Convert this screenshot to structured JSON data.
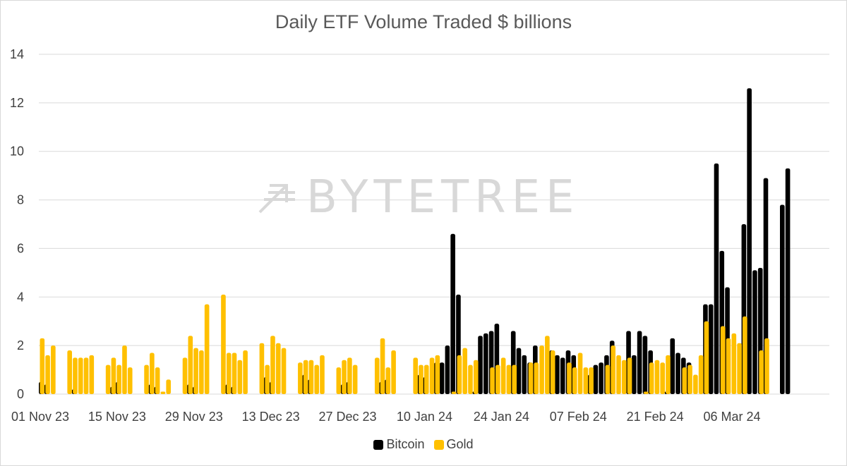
{
  "colors": {
    "bitcoin": "#000000",
    "gold": "#FFC000",
    "grid": "#d9d9d9",
    "text": "#404040"
  },
  "watermark": {
    "text": "BYTETREE"
  },
  "chart_data": {
    "type": "bar",
    "title": "Daily ETF Volume Traded $ billions",
    "xlabel": "",
    "ylabel": "",
    "ylim": [
      0,
      14
    ],
    "yticks": [
      0,
      2,
      4,
      6,
      8,
      10,
      12,
      14
    ],
    "x_start": "2023-11-01",
    "x_days": 144,
    "x_ticks": [
      {
        "day": 0,
        "label": "01 Nov 23"
      },
      {
        "day": 14,
        "label": "15 Nov 23"
      },
      {
        "day": 28,
        "label": "29 Nov 23"
      },
      {
        "day": 42,
        "label": "13 Dec 23"
      },
      {
        "day": 56,
        "label": "27 Dec 23"
      },
      {
        "day": 70,
        "label": "10 Jan 24"
      },
      {
        "day": 84,
        "label": "24 Jan 24"
      },
      {
        "day": 98,
        "label": "07 Feb 24"
      },
      {
        "day": 112,
        "label": "21 Feb 24"
      },
      {
        "day": 126,
        "label": "06 Mar 24"
      }
    ],
    "legend": [
      "Bitcoin",
      "Gold"
    ],
    "series": [
      {
        "name": "Bitcoin",
        "points": [
          {
            "day": 0,
            "value": 0.5
          },
          {
            "day": 1,
            "value": 0.4
          },
          {
            "day": 6,
            "value": 0.2
          },
          {
            "day": 13,
            "value": 0.3
          },
          {
            "day": 14,
            "value": 0.5
          },
          {
            "day": 20,
            "value": 0.4
          },
          {
            "day": 21,
            "value": 0.3
          },
          {
            "day": 27,
            "value": 0.4
          },
          {
            "day": 28,
            "value": 0.3
          },
          {
            "day": 34,
            "value": 0.4
          },
          {
            "day": 35,
            "value": 0.3
          },
          {
            "day": 41,
            "value": 0.7
          },
          {
            "day": 42,
            "value": 0.5
          },
          {
            "day": 48,
            "value": 0.8
          },
          {
            "day": 49,
            "value": 0.6
          },
          {
            "day": 55,
            "value": 0.4
          },
          {
            "day": 56,
            "value": 0.5
          },
          {
            "day": 62,
            "value": 0.5
          },
          {
            "day": 63,
            "value": 0.6
          },
          {
            "day": 69,
            "value": 0.8
          },
          {
            "day": 70,
            "value": 0.7
          },
          {
            "day": 72,
            "value": 1.3
          },
          {
            "day": 73,
            "value": 1.3
          },
          {
            "day": 74,
            "value": 2.0
          },
          {
            "day": 75,
            "value": 6.6
          },
          {
            "day": 76,
            "value": 4.1
          },
          {
            "day": 79,
            "value": 0.1
          },
          {
            "day": 80,
            "value": 2.4
          },
          {
            "day": 81,
            "value": 2.5
          },
          {
            "day": 82,
            "value": 2.6
          },
          {
            "day": 83,
            "value": 2.9
          },
          {
            "day": 86,
            "value": 2.6
          },
          {
            "day": 87,
            "value": 1.9
          },
          {
            "day": 88,
            "value": 1.6
          },
          {
            "day": 89,
            "value": 1.3
          },
          {
            "day": 90,
            "value": 2.0
          },
          {
            "day": 93,
            "value": 1.8
          },
          {
            "day": 94,
            "value": 1.6
          },
          {
            "day": 95,
            "value": 1.5
          },
          {
            "day": 96,
            "value": 1.8
          },
          {
            "day": 97,
            "value": 1.6
          },
          {
            "day": 100,
            "value": 0.8
          },
          {
            "day": 101,
            "value": 1.2
          },
          {
            "day": 102,
            "value": 1.3
          },
          {
            "day": 103,
            "value": 1.6
          },
          {
            "day": 104,
            "value": 2.2
          },
          {
            "day": 107,
            "value": 2.6
          },
          {
            "day": 108,
            "value": 1.6
          },
          {
            "day": 109,
            "value": 2.6
          },
          {
            "day": 110,
            "value": 2.4
          },
          {
            "day": 111,
            "value": 1.8
          },
          {
            "day": 114,
            "value": 0.1
          },
          {
            "day": 115,
            "value": 2.3
          },
          {
            "day": 116,
            "value": 1.7
          },
          {
            "day": 117,
            "value": 1.5
          },
          {
            "day": 118,
            "value": 1.3
          },
          {
            "day": 121,
            "value": 3.7
          },
          {
            "day": 122,
            "value": 3.7
          },
          {
            "day": 123,
            "value": 9.5
          },
          {
            "day": 124,
            "value": 5.9
          },
          {
            "day": 125,
            "value": 4.4
          },
          {
            "day": 128,
            "value": 7.0
          },
          {
            "day": 129,
            "value": 12.6
          },
          {
            "day": 130,
            "value": 5.1
          },
          {
            "day": 131,
            "value": 5.2
          },
          {
            "day": 132,
            "value": 8.9
          },
          {
            "day": 135,
            "value": 7.8
          },
          {
            "day": 136,
            "value": 9.3
          }
        ]
      },
      {
        "name": "Gold",
        "points": [
          {
            "day": 0,
            "value": 2.3
          },
          {
            "day": 1,
            "value": 1.6
          },
          {
            "day": 2,
            "value": 2.0
          },
          {
            "day": 5,
            "value": 1.8
          },
          {
            "day": 6,
            "value": 1.5
          },
          {
            "day": 7,
            "value": 1.5
          },
          {
            "day": 8,
            "value": 1.5
          },
          {
            "day": 9,
            "value": 1.6
          },
          {
            "day": 12,
            "value": 1.2
          },
          {
            "day": 13,
            "value": 1.5
          },
          {
            "day": 14,
            "value": 1.2
          },
          {
            "day": 15,
            "value": 2.0
          },
          {
            "day": 16,
            "value": 1.1
          },
          {
            "day": 19,
            "value": 1.2
          },
          {
            "day": 20,
            "value": 1.7
          },
          {
            "day": 21,
            "value": 1.1
          },
          {
            "day": 22,
            "value": 0.1
          },
          {
            "day": 23,
            "value": 0.6
          },
          {
            "day": 26,
            "value": 1.5
          },
          {
            "day": 27,
            "value": 2.4
          },
          {
            "day": 28,
            "value": 1.9
          },
          {
            "day": 29,
            "value": 1.8
          },
          {
            "day": 30,
            "value": 3.7
          },
          {
            "day": 33,
            "value": 4.1
          },
          {
            "day": 34,
            "value": 1.7
          },
          {
            "day": 35,
            "value": 1.7
          },
          {
            "day": 36,
            "value": 1.4
          },
          {
            "day": 37,
            "value": 1.8
          },
          {
            "day": 40,
            "value": 2.1
          },
          {
            "day": 41,
            "value": 1.2
          },
          {
            "day": 42,
            "value": 2.4
          },
          {
            "day": 43,
            "value": 2.1
          },
          {
            "day": 44,
            "value": 1.9
          },
          {
            "day": 47,
            "value": 1.3
          },
          {
            "day": 48,
            "value": 1.4
          },
          {
            "day": 49,
            "value": 1.4
          },
          {
            "day": 50,
            "value": 1.2
          },
          {
            "day": 51,
            "value": 1.6
          },
          {
            "day": 54,
            "value": 1.1
          },
          {
            "day": 55,
            "value": 1.4
          },
          {
            "day": 56,
            "value": 1.5
          },
          {
            "day": 57,
            "value": 1.2
          },
          {
            "day": 61,
            "value": 1.5
          },
          {
            "day": 62,
            "value": 2.3
          },
          {
            "day": 63,
            "value": 1.1
          },
          {
            "day": 64,
            "value": 1.8
          },
          {
            "day": 68,
            "value": 1.5
          },
          {
            "day": 69,
            "value": 1.2
          },
          {
            "day": 70,
            "value": 1.2
          },
          {
            "day": 71,
            "value": 1.5
          },
          {
            "day": 72,
            "value": 1.6
          },
          {
            "day": 75,
            "value": 0.1
          },
          {
            "day": 76,
            "value": 1.6
          },
          {
            "day": 77,
            "value": 1.9
          },
          {
            "day": 78,
            "value": 1.2
          },
          {
            "day": 79,
            "value": 1.4
          },
          {
            "day": 82,
            "value": 1.1
          },
          {
            "day": 83,
            "value": 1.2
          },
          {
            "day": 84,
            "value": 1.5
          },
          {
            "day": 85,
            "value": 1.2
          },
          {
            "day": 86,
            "value": 1.2
          },
          {
            "day": 89,
            "value": 1.3
          },
          {
            "day": 90,
            "value": 1.3
          },
          {
            "day": 91,
            "value": 2.0
          },
          {
            "day": 92,
            "value": 2.4
          },
          {
            "day": 93,
            "value": 1.8
          },
          {
            "day": 96,
            "value": 1.3
          },
          {
            "day": 97,
            "value": 1.1
          },
          {
            "day": 98,
            "value": 1.7
          },
          {
            "day": 99,
            "value": 1.1
          },
          {
            "day": 100,
            "value": 1.1
          },
          {
            "day": 103,
            "value": 1.2
          },
          {
            "day": 104,
            "value": 2.0
          },
          {
            "day": 105,
            "value": 1.6
          },
          {
            "day": 106,
            "value": 1.4
          },
          {
            "day": 107,
            "value": 1.5
          },
          {
            "day": 110,
            "value": 0.1
          },
          {
            "day": 111,
            "value": 1.3
          },
          {
            "day": 112,
            "value": 1.4
          },
          {
            "day": 113,
            "value": 1.3
          },
          {
            "day": 114,
            "value": 1.6
          },
          {
            "day": 117,
            "value": 1.1
          },
          {
            "day": 118,
            "value": 1.2
          },
          {
            "day": 119,
            "value": 0.8
          },
          {
            "day": 120,
            "value": 1.6
          },
          {
            "day": 121,
            "value": 3.0
          },
          {
            "day": 124,
            "value": 2.8
          },
          {
            "day": 125,
            "value": 2.3
          },
          {
            "day": 126,
            "value": 2.5
          },
          {
            "day": 127,
            "value": 2.1
          },
          {
            "day": 128,
            "value": 3.2
          },
          {
            "day": 131,
            "value": 1.8
          },
          {
            "day": 132,
            "value": 2.3
          }
        ]
      }
    ]
  }
}
